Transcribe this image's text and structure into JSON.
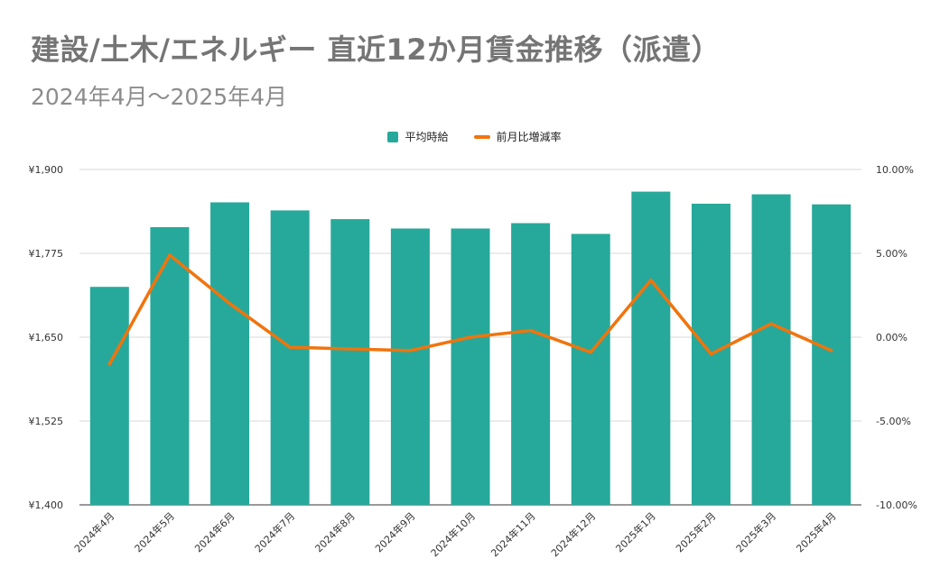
{
  "title": "建設/土木/エネルギー 直近12か月賃金推移（派遣）",
  "subtitle": "2024年4月～2025年4月",
  "chart_data": {
    "type": "bar+line",
    "categories": [
      "2024年4月",
      "2024年5月",
      "2024年6月",
      "2024年7月",
      "2024年8月",
      "2024年9月",
      "2024年10月",
      "2024年11月",
      "2024年12月",
      "2025年1月",
      "2025年2月",
      "2025年3月",
      "2025年4月"
    ],
    "series": [
      {
        "name": "平均時給",
        "type": "bar",
        "axis": "left",
        "color": "#26a99a",
        "values": [
          1725,
          1814,
          1851,
          1839,
          1826,
          1812,
          1812,
          1820,
          1804,
          1867,
          1849,
          1863,
          1848
        ]
      },
      {
        "name": "前月比増減率",
        "type": "line",
        "axis": "right",
        "color": "#f0740d",
        "values": [
          -1.6,
          4.9,
          2.0,
          -0.6,
          -0.7,
          -0.8,
          0.0,
          0.4,
          -0.9,
          3.4,
          -1.0,
          0.8,
          -0.8
        ]
      }
    ],
    "y_left": {
      "min": 1400,
      "max": 1900,
      "ticks": [
        1400,
        1525,
        1650,
        1775,
        1900
      ],
      "tick_labels": [
        "¥1,400",
        "¥1,525",
        "¥1,650",
        "¥1,775",
        "¥1,900"
      ]
    },
    "y_right": {
      "min": -10,
      "max": 10,
      "ticks": [
        -10,
        -5,
        0,
        5,
        10
      ],
      "tick_labels": [
        "-10.00%",
        "-5.00%",
        "0.00%",
        "5.00%",
        "10.00%"
      ]
    },
    "grid": true,
    "legend_position": "top-center"
  }
}
